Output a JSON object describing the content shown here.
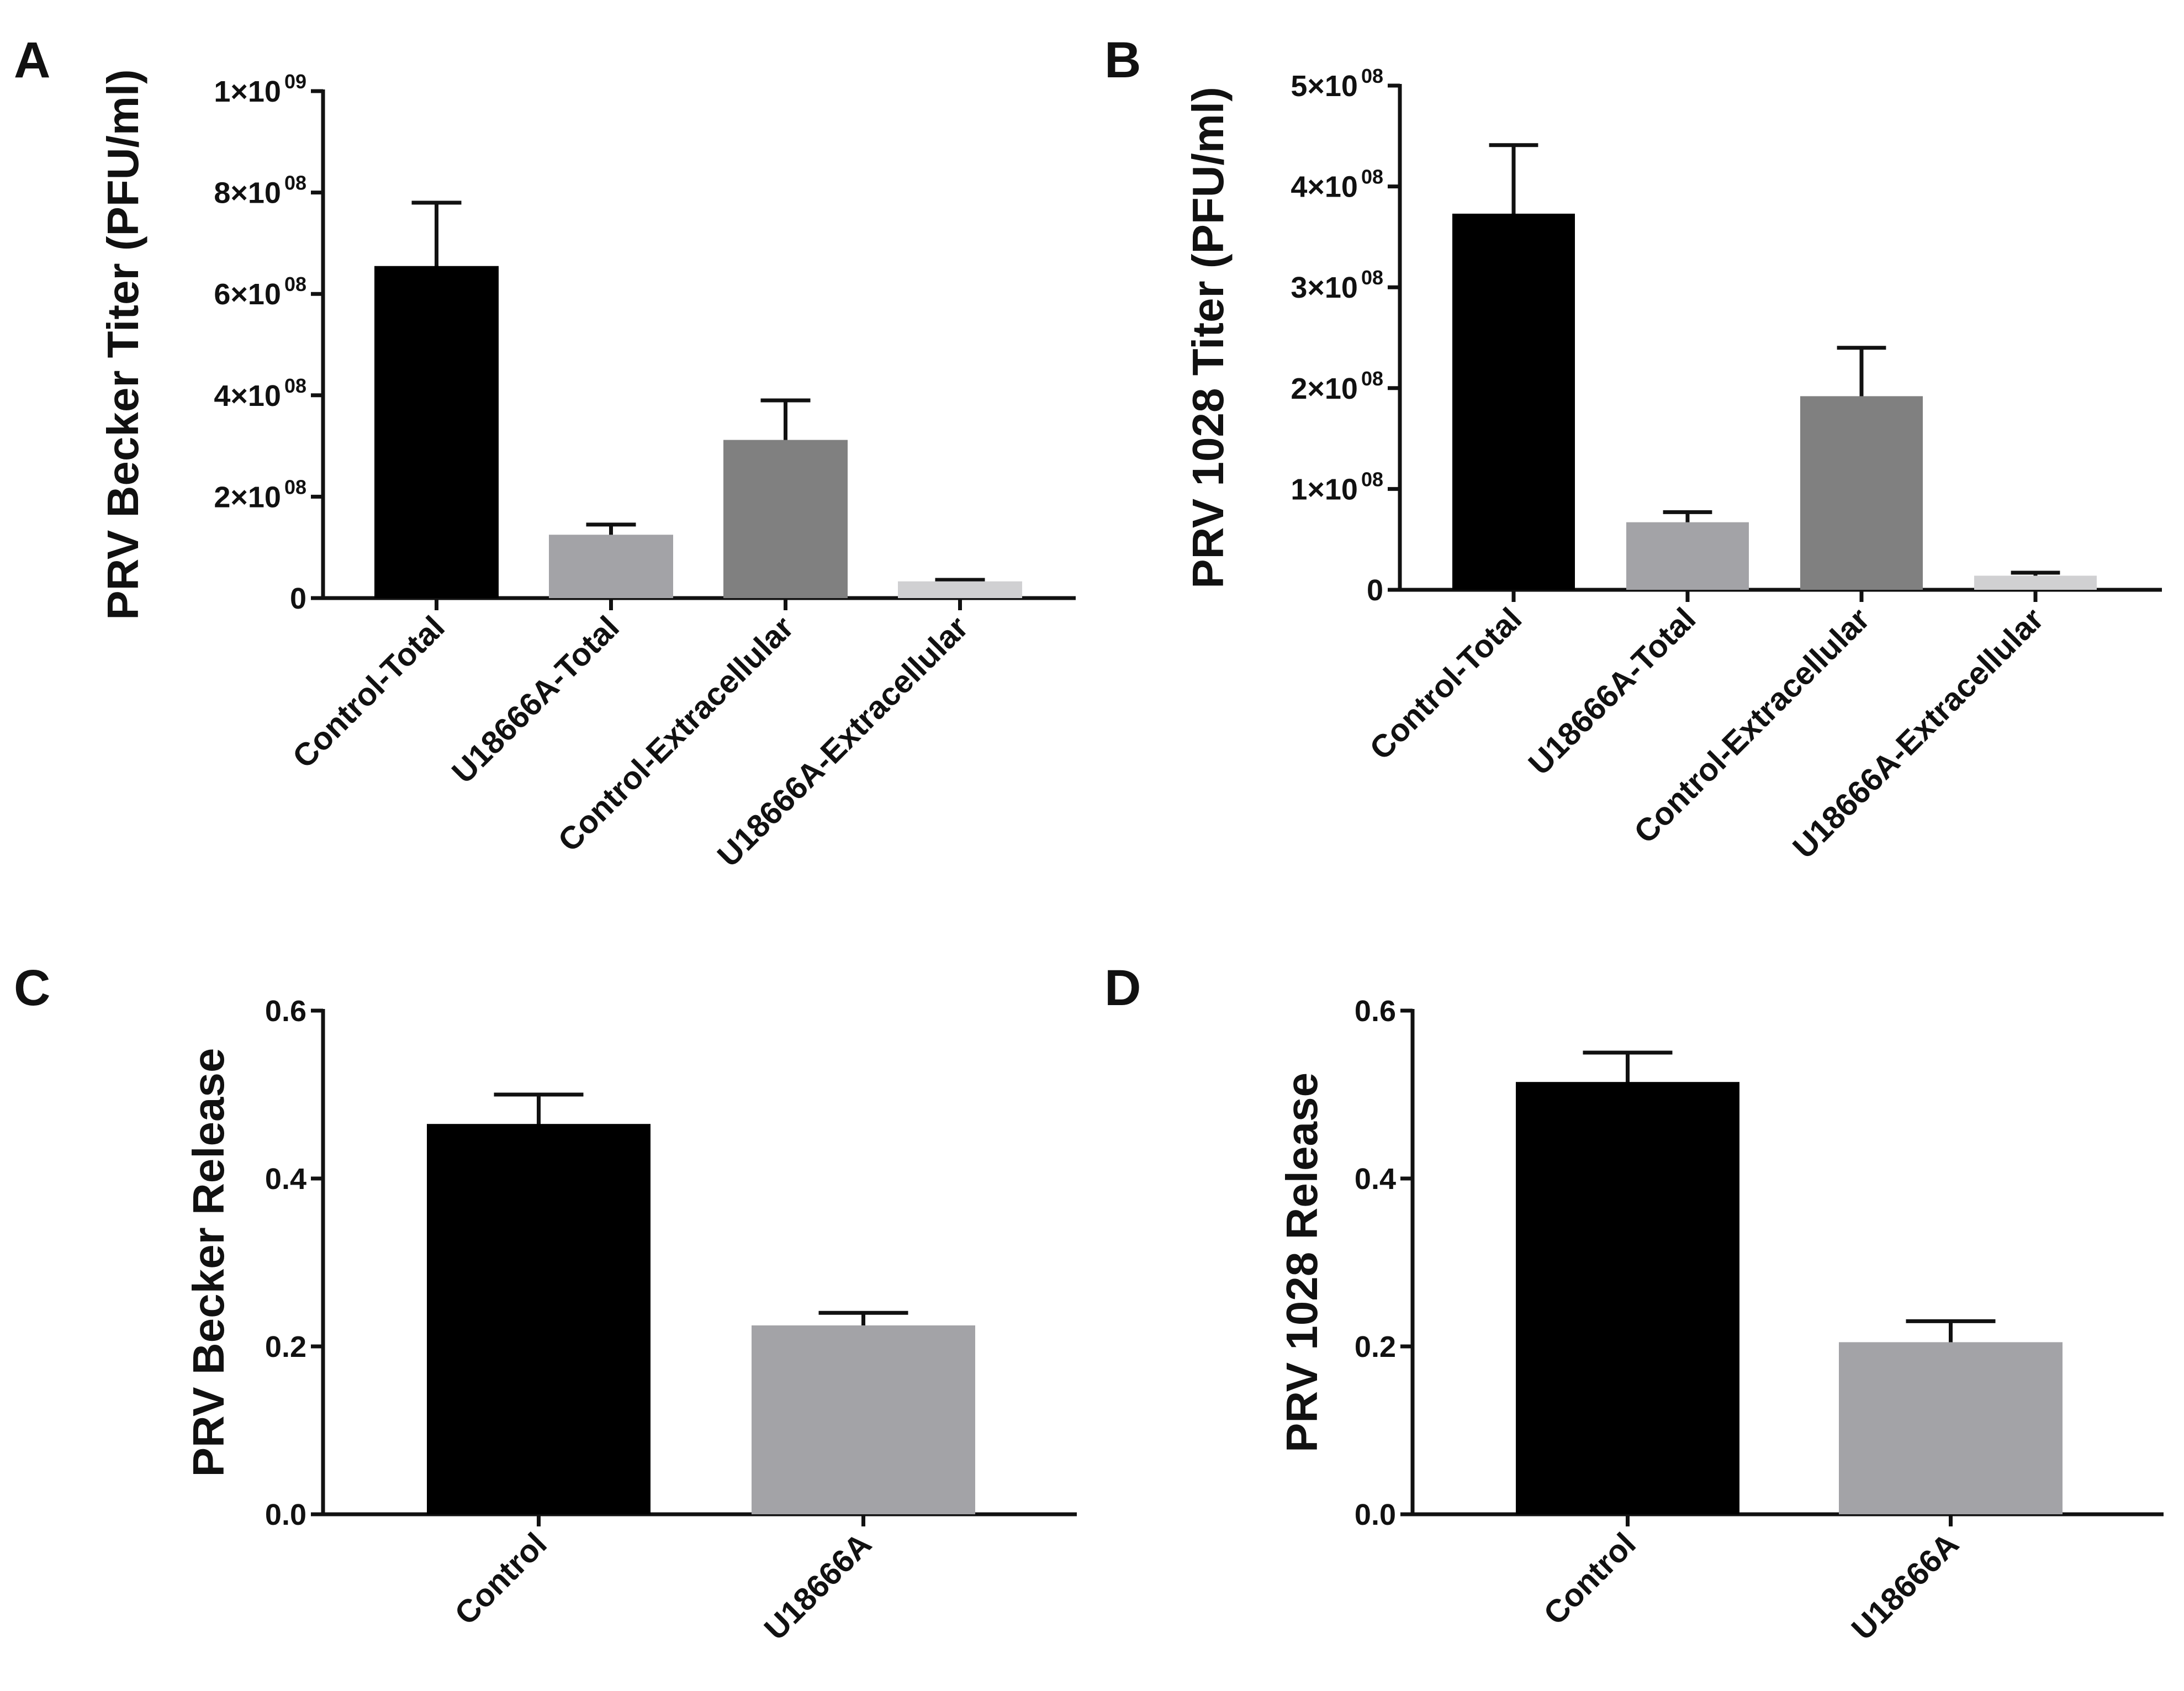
{
  "chart_data": [
    {
      "panel": "A",
      "type": "bar",
      "title": "",
      "xlabel": "",
      "ylabel": "PRV Becker Titer (PFU/ml)",
      "ylim": [
        0,
        1000000000
      ],
      "yticks": [
        {
          "value": 0,
          "mantissa": "0",
          "exponent": ""
        },
        {
          "value": 200000000,
          "mantissa": "2×10",
          "exponent": "08"
        },
        {
          "value": 400000000,
          "mantissa": "4×10",
          "exponent": "08"
        },
        {
          "value": 600000000,
          "mantissa": "6×10",
          "exponent": "08"
        },
        {
          "value": 800000000,
          "mantissa": "8×10",
          "exponent": "08"
        },
        {
          "value": 1000000000,
          "mantissa": "1×10",
          "exponent": "09"
        }
      ],
      "categories": [
        "Control-Total",
        "U18666A-Total",
        "Control-Extracellular",
        "U18666A-Extracellular"
      ],
      "values": [
        655000000,
        125000000,
        312000000,
        33000000
      ],
      "errors": [
        125000000,
        20000000,
        78000000,
        3000000
      ],
      "colors": [
        "#000000",
        "#a3a3a7",
        "#808080",
        "#d0d0d2"
      ]
    },
    {
      "panel": "B",
      "type": "bar",
      "title": "",
      "xlabel": "",
      "ylabel": "PRV 1028 Titer (PFU/ml)",
      "ylim": [
        0,
        500000000
      ],
      "yticks": [
        {
          "value": 0,
          "mantissa": "0",
          "exponent": ""
        },
        {
          "value": 100000000,
          "mantissa": "1×10",
          "exponent": "08"
        },
        {
          "value": 200000000,
          "mantissa": "2×10",
          "exponent": "08"
        },
        {
          "value": 300000000,
          "mantissa": "3×10",
          "exponent": "08"
        },
        {
          "value": 400000000,
          "mantissa": "4×10",
          "exponent": "08"
        },
        {
          "value": 500000000,
          "mantissa": "5×10",
          "exponent": "08"
        }
      ],
      "categories": [
        "Control-Total",
        "U18666A-Total",
        "Control-Extracellular",
        "U18666A-Extracellular"
      ],
      "values": [
        373000000,
        67000000,
        192000000,
        14000000
      ],
      "errors": [
        68000000,
        10000000,
        48000000,
        3000000
      ],
      "colors": [
        "#000000",
        "#a3a3a7",
        "#808080",
        "#d0d0d2"
      ]
    },
    {
      "panel": "C",
      "type": "bar",
      "title": "",
      "xlabel": "",
      "ylabel": "PRV Becker Release",
      "ylim": [
        0,
        0.6
      ],
      "yticks": [
        {
          "value": 0,
          "mantissa": "0.0",
          "exponent": ""
        },
        {
          "value": 0.2,
          "mantissa": "0.2",
          "exponent": ""
        },
        {
          "value": 0.4,
          "mantissa": "0.4",
          "exponent": ""
        },
        {
          "value": 0.6,
          "mantissa": "0.6",
          "exponent": ""
        }
      ],
      "categories": [
        "Control",
        "U18666A"
      ],
      "values": [
        0.465,
        0.225
      ],
      "errors": [
        0.035,
        0.015
      ],
      "colors": [
        "#000000",
        "#a3a3a7"
      ]
    },
    {
      "panel": "D",
      "type": "bar",
      "title": "",
      "xlabel": "",
      "ylabel": "PRV 1028 Release",
      "ylim": [
        0,
        0.6
      ],
      "yticks": [
        {
          "value": 0,
          "mantissa": "0.0",
          "exponent": ""
        },
        {
          "value": 0.2,
          "mantissa": "0.2",
          "exponent": ""
        },
        {
          "value": 0.4,
          "mantissa": "0.4",
          "exponent": ""
        },
        {
          "value": 0.6,
          "mantissa": "0.6",
          "exponent": ""
        }
      ],
      "categories": [
        "Control",
        "U18666A"
      ],
      "values": [
        0.515,
        0.205
      ],
      "errors": [
        0.035,
        0.025
      ],
      "colors": [
        "#000000",
        "#a3a3a7"
      ]
    }
  ]
}
